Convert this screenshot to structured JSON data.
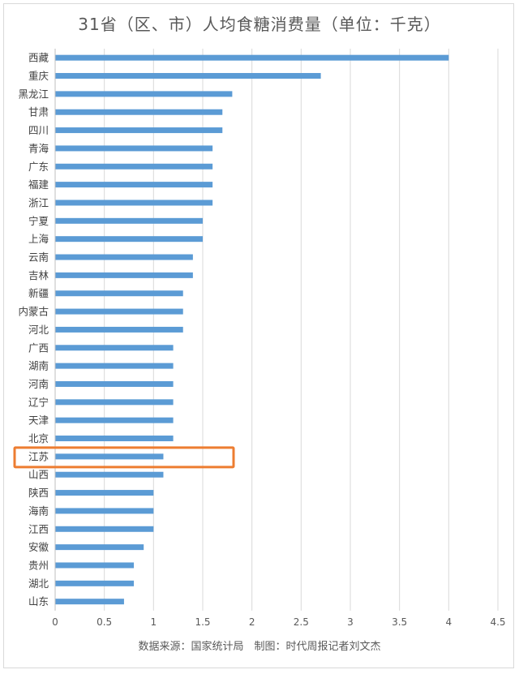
{
  "chart_data": {
    "type": "bar",
    "orientation": "horizontal",
    "title": "31省（区、市）人均食糖消费量（单位：千克）",
    "categories": [
      "西藏",
      "重庆",
      "黑龙江",
      "甘肃",
      "四川",
      "青海",
      "广东",
      "福建",
      "浙江",
      "宁夏",
      "上海",
      "云南",
      "吉林",
      "新疆",
      "内蒙古",
      "河北",
      "广西",
      "湖南",
      "河南",
      "辽宁",
      "天津",
      "北京",
      "江苏",
      "山西",
      "陕西",
      "海南",
      "江西",
      "安徽",
      "贵州",
      "湖北",
      "山东"
    ],
    "values": [
      4.0,
      2.7,
      1.8,
      1.7,
      1.7,
      1.6,
      1.6,
      1.6,
      1.6,
      1.5,
      1.5,
      1.4,
      1.4,
      1.3,
      1.3,
      1.3,
      1.2,
      1.2,
      1.2,
      1.2,
      1.2,
      1.2,
      1.1,
      1.1,
      1.0,
      1.0,
      1.0,
      0.9,
      0.8,
      0.8,
      0.7
    ],
    "xlim": [
      0,
      4.5
    ],
    "xticks": [
      "0",
      "0.5",
      "1",
      "1.5",
      "2",
      "2.5",
      "3",
      "3.5",
      "4",
      "4.5"
    ],
    "grid": true,
    "bar_color": "#5b9bd5",
    "highlight": {
      "category": "江苏",
      "color": "#ed7d31"
    },
    "source_note": "数据来源：国家统计局　制图：时代周报记者刘文杰"
  }
}
